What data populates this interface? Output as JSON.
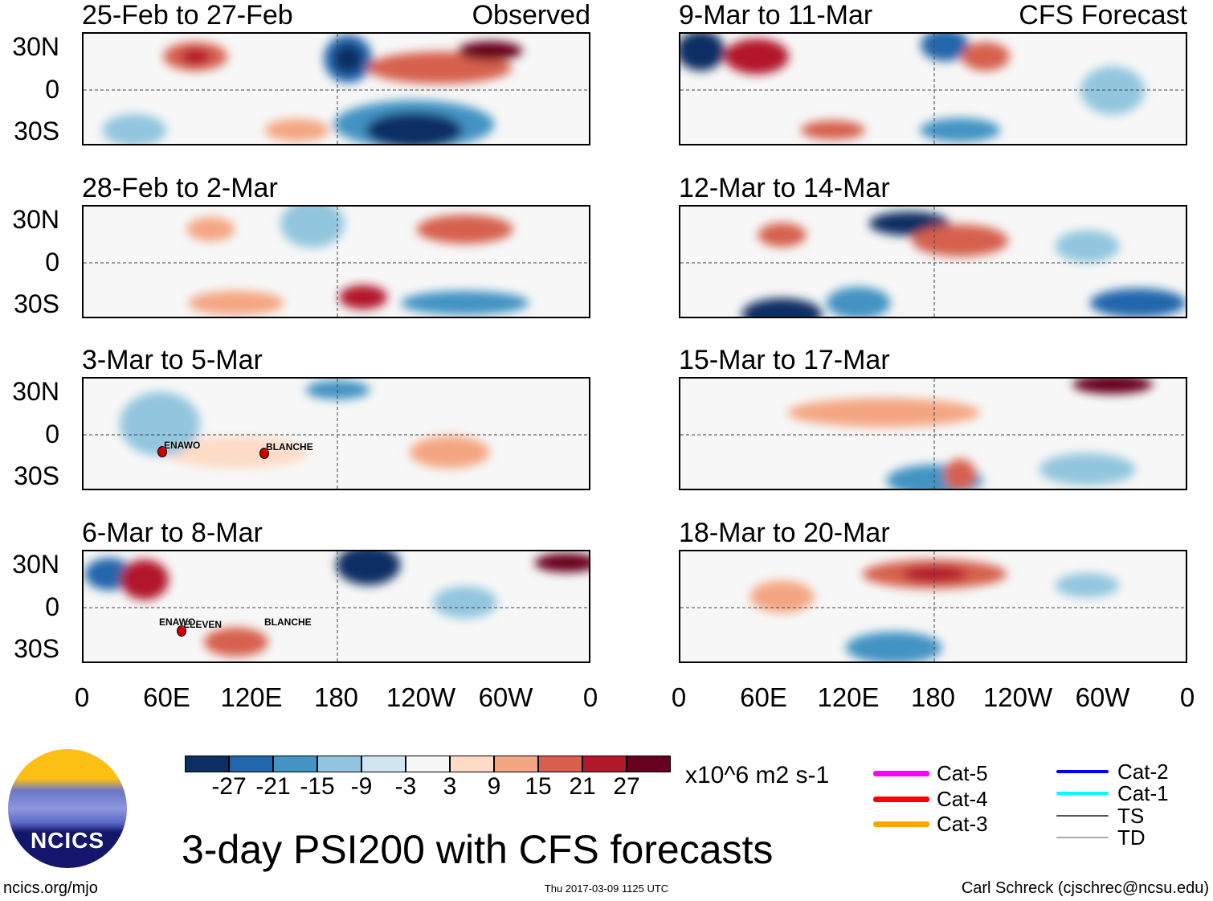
{
  "title": "3-day PSI200 with CFS forecasts",
  "observed_label": "Observed",
  "forecast_label": "CFS Forecast",
  "units": "x10^6 m2 s-1",
  "footer": {
    "left": "ncics.org/mjo",
    "center": "Thu 2017-03-09 1125 UTC",
    "right": "Carl Schreck (cjschrec@ncsu.edu)"
  },
  "logo_text": "NCICS",
  "chart_data": {
    "type": "heatmap",
    "title": "3-day PSI200 with CFS forecasts",
    "units": "x10^6 m2 s-1",
    "lat_ticks": [
      "30N",
      "0",
      "30S"
    ],
    "lon_ticks": [
      "0",
      "60E",
      "120E",
      "180",
      "120W",
      "60W",
      "0"
    ],
    "panels_observed": [
      "25-Feb to 27-Feb",
      "28-Feb to 2-Mar",
      "3-Mar to 5-Mar",
      "6-Mar to 8-Mar"
    ],
    "panels_forecast": [
      "9-Mar to 11-Mar",
      "12-Mar to 14-Mar",
      "15-Mar to 17-Mar",
      "18-Mar to 20-Mar"
    ],
    "colorbar_levels": [
      "-27",
      "-21",
      "-15",
      "-9",
      "-3",
      "3",
      "9",
      "15",
      "21",
      "27"
    ],
    "colorbar_colors": [
      "#0b2f63",
      "#2166ac",
      "#4393c3",
      "#92c5de",
      "#d1e5f0",
      "#f7f7f7",
      "#fddbc7",
      "#f4a582",
      "#d6604d",
      "#b2182b",
      "#67001f"
    ],
    "storms": [
      {
        "panel": "3-Mar to 5-Mar",
        "names": [
          "ENAWO",
          "BLANCHE"
        ]
      },
      {
        "panel": "6-Mar to 8-Mar",
        "names": [
          "ENAWO",
          "ELEVEN",
          "BLANCHE"
        ]
      }
    ]
  },
  "legend": [
    {
      "label": "Cat-5",
      "color": "#ff00ff"
    },
    {
      "label": "Cat-4",
      "color": "#ff0000"
    },
    {
      "label": "Cat-3",
      "color": "#ffa500"
    },
    {
      "label": "Cat-2",
      "color": "#0000ff"
    },
    {
      "label": "Cat-1",
      "color": "#00ffff"
    },
    {
      "label": "TS",
      "color": "#555555"
    },
    {
      "label": "TD",
      "color": "#aaaaaa"
    }
  ]
}
